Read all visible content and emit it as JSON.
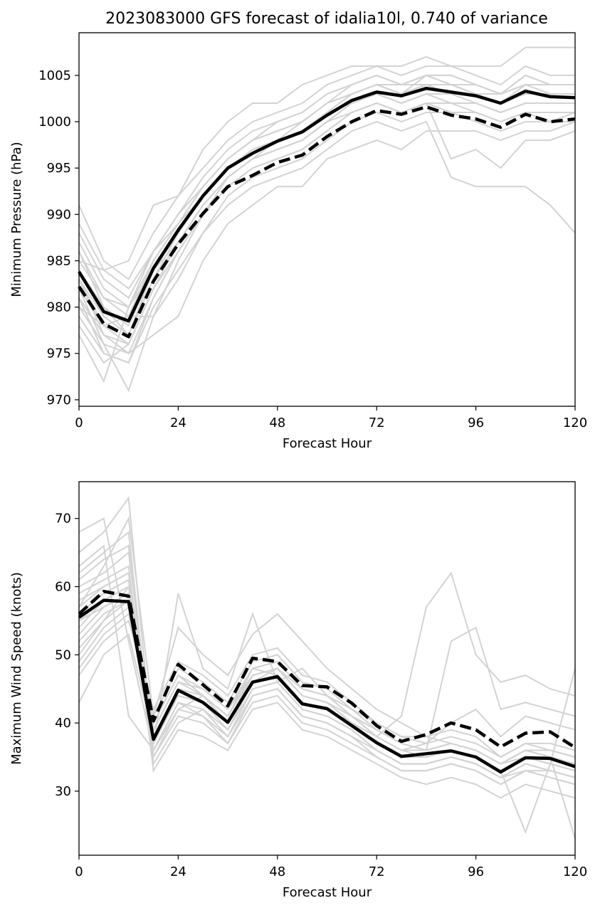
{
  "chart_data": [
    {
      "type": "line",
      "title": "2023083000 GFS forecast of idalia10l, 0.740 of variance",
      "xlabel": "Forecast Hour",
      "ylabel": "Minimum Pressure (hPa)",
      "xlim": [
        0,
        120
      ],
      "ylim": [
        969.3,
        1009.6
      ],
      "xticks": [
        0,
        24,
        48,
        72,
        96,
        120
      ],
      "yticks": [
        970,
        975,
        980,
        985,
        990,
        995,
        1000,
        1005
      ],
      "grid": false,
      "x": [
        0,
        6,
        12,
        18,
        24,
        30,
        36,
        42,
        48,
        54,
        60,
        66,
        72,
        78,
        84,
        90,
        96,
        102,
        108,
        114,
        120
      ],
      "series": [
        {
          "style": "solid",
          "color": "#000000",
          "values": [
            983.8,
            979.5,
            978.5,
            984.2,
            988.3,
            992.0,
            995.0,
            996.6,
            997.9,
            998.9,
            1000.7,
            1002.3,
            1003.2,
            1002.8,
            1003.6,
            1003.2,
            1002.8,
            1002.0,
            1003.3,
            1002.7,
            1002.6
          ]
        },
        {
          "style": "dashed",
          "color": "#000000",
          "values": [
            982.2,
            978.2,
            976.8,
            982.8,
            986.8,
            990.1,
            993.0,
            994.2,
            995.6,
            996.4,
            998.4,
            1000.0,
            1001.2,
            1000.8,
            1001.6,
            1000.7,
            1000.3,
            999.4,
            1000.8,
            1000.0,
            1000.3
          ]
        }
      ],
      "ensemble_members": [
        [
          984,
          980,
          978,
          984,
          988,
          992,
          995,
          997,
          998,
          999,
          1001,
          1002,
          1003,
          1003,
          1004,
          1003,
          1003,
          1002,
          1003,
          1003,
          1003
        ],
        [
          983,
          979,
          977,
          983,
          987,
          991,
          994,
          996,
          997,
          998,
          1000,
          1002,
          1003,
          1002,
          1003,
          1003,
          1002,
          1001,
          1002,
          1002,
          1002
        ],
        [
          986,
          981,
          979,
          985,
          989,
          993,
          996,
          998,
          999,
          1000,
          1002,
          1003,
          1004,
          1003,
          1004,
          1004,
          1003,
          1002,
          1004,
          1003,
          1003
        ],
        [
          981,
          977,
          976,
          982,
          986,
          990,
          993,
          995,
          996,
          997,
          999,
          1001,
          1002,
          1001,
          1002,
          1002,
          1001,
          1000,
          1001,
          1001,
          1001
        ],
        [
          988,
          983,
          981,
          986,
          990,
          994,
          997,
          999,
          1000,
          1001,
          1003,
          1004,
          1005,
          1004,
          1005,
          1005,
          1004,
          1003,
          1005,
          1004,
          1004
        ],
        [
          979,
          975,
          974,
          980,
          984,
          988,
          992,
          994,
          995,
          996,
          998,
          1000,
          1001,
          1000,
          1001,
          1001,
          1000,
          999,
          1000,
          1000,
          1000
        ],
        [
          991,
          985,
          983,
          988,
          992,
          995,
          998,
          1000,
          1001,
          1002,
          1004,
          1005,
          1006,
          1005,
          1006,
          1006,
          1005,
          1004,
          1006,
          1005,
          1005
        ],
        [
          977,
          972,
          980,
          984,
          987,
          991,
          994,
          996,
          997,
          998,
          1000,
          1002,
          1003,
          1002,
          1003,
          1002,
          1002,
          1001,
          1002,
          1002,
          1002
        ],
        [
          982,
          976,
          971,
          979,
          985,
          990,
          994,
          996,
          998,
          999,
          1001,
          1003,
          1004,
          1003,
          1004,
          1003,
          1003,
          1002,
          1003,
          1003,
          1003
        ],
        [
          985,
          984,
          985,
          991,
          992,
          997,
          1000,
          1002,
          1002,
          1004,
          1005,
          1006,
          1006,
          1006,
          1007,
          1006,
          1006,
          1006,
          1008,
          1008,
          1008
        ],
        [
          980,
          978,
          979,
          979,
          983,
          988,
          991,
          993,
          994,
          995,
          997,
          999,
          1000,
          999,
          1000,
          994,
          993,
          993,
          993,
          991,
          988
        ],
        [
          983,
          977,
          975,
          981,
          986,
          990,
          993,
          995,
          996,
          997,
          999,
          1001,
          1002,
          1001,
          1002,
          996,
          997,
          995,
          998,
          998,
          999
        ],
        [
          987,
          982,
          980,
          986,
          990,
          993,
          996,
          998,
          999,
          1000,
          1002,
          1003,
          1004,
          1003,
          1005,
          1004,
          1004,
          1003,
          1004,
          1004,
          1004
        ],
        [
          980,
          976,
          975,
          977,
          979,
          985,
          989,
          991,
          993,
          993,
          996,
          997,
          998,
          997,
          999,
          999,
          999,
          998,
          999,
          999,
          1000
        ],
        [
          978,
          974,
          976,
          982,
          986,
          990,
          993,
          995,
          996,
          997,
          999,
          1001,
          1002,
          1001,
          1002,
          1001,
          1001,
          1000,
          1001,
          1000,
          1001
        ],
        [
          986,
          980,
          977,
          983,
          988,
          992,
          995,
          997,
          998,
          1000,
          1002,
          1003,
          1004,
          1004,
          1004,
          1004,
          1003,
          1003,
          1004,
          1004,
          1004
        ],
        [
          982,
          978,
          979,
          985,
          989,
          993,
          996,
          998,
          999,
          1000,
          1002,
          1004,
          1005,
          1004,
          1005,
          1005,
          1004,
          1003,
          1005,
          1004,
          1004
        ],
        [
          989,
          984,
          982,
          986,
          989,
          992,
          995,
          997,
          998,
          999,
          1001,
          1002,
          1003,
          1003,
          1004,
          1003,
          1003,
          1002,
          1003,
          1003,
          1003
        ],
        [
          981,
          975,
          974,
          981,
          986,
          990,
          994,
          996,
          997,
          998,
          1000,
          1002,
          1003,
          1002,
          1003,
          1002,
          1002,
          1001,
          1002,
          1002,
          1002
        ],
        [
          984,
          979,
          977,
          984,
          988,
          992,
          995,
          997,
          998,
          999,
          1001,
          1003,
          1004,
          1003,
          1004,
          1004,
          1003,
          1002,
          1003,
          1003,
          1003
        ],
        [
          985,
          981,
          980,
          985,
          989,
          993,
          996,
          998,
          1000,
          1001,
          1003,
          1004,
          1005,
          1004,
          1005,
          1004,
          1004,
          1003,
          1004,
          1004,
          1004
        ],
        [
          983,
          978,
          976,
          982,
          987,
          991,
          994,
          996,
          997,
          998,
          1000,
          1001,
          1002,
          1001,
          1002,
          1001,
          1001,
          1000,
          1001,
          1001,
          1001
        ]
      ]
    },
    {
      "type": "line",
      "title": "",
      "xlabel": "Forecast Hour",
      "ylabel": "Maximum Wind Speed (knots)",
      "xlim": [
        0,
        120
      ],
      "ylim": [
        20.6,
        75.4
      ],
      "xticks": [
        0,
        24,
        48,
        72,
        96,
        120
      ],
      "yticks": [
        30,
        40,
        50,
        60,
        70
      ],
      "grid": false,
      "x": [
        0,
        6,
        12,
        18,
        24,
        30,
        36,
        42,
        48,
        54,
        60,
        66,
        72,
        78,
        84,
        90,
        96,
        102,
        108,
        114,
        120
      ],
      "series": [
        {
          "style": "solid",
          "color": "#000000",
          "values": [
            55.5,
            58.0,
            57.8,
            37.6,
            44.8,
            43.0,
            40.1,
            46.0,
            46.8,
            42.8,
            42.1,
            39.6,
            37.1,
            35.1,
            35.5,
            35.9,
            35.0,
            32.8,
            34.9,
            34.8,
            33.6
          ]
        },
        {
          "style": "dashed",
          "color": "#000000",
          "values": [
            56.0,
            59.3,
            58.6,
            40.3,
            48.6,
            45.6,
            42.5,
            49.5,
            49.0,
            45.5,
            45.3,
            42.9,
            39.6,
            37.3,
            38.3,
            40.0,
            39.0,
            36.5,
            38.5,
            38.7,
            36.4
          ]
        }
      ],
      "ensemble_members": [
        [
          55,
          58,
          58,
          38,
          45,
          43,
          40,
          46,
          47,
          43,
          42,
          40,
          37,
          35,
          35,
          36,
          35,
          33,
          35,
          35,
          34
        ],
        [
          60,
          62,
          65,
          36,
          43,
          41,
          38,
          44,
          45,
          41,
          40,
          38,
          36,
          34,
          34,
          35,
          34,
          32,
          34,
          33,
          32
        ],
        [
          50,
          55,
          60,
          40,
          47,
          45,
          42,
          48,
          49,
          45,
          44,
          41,
          39,
          37,
          36,
          37,
          36,
          34,
          36,
          36,
          35
        ],
        [
          65,
          68,
          73,
          35,
          41,
          40,
          37,
          43,
          44,
          40,
          39,
          37,
          35,
          33,
          33,
          34,
          33,
          31,
          33,
          32,
          31
        ],
        [
          47,
          52,
          55,
          42,
          49,
          47,
          44,
          50,
          51,
          47,
          46,
          43,
          40,
          38,
          38,
          39,
          38,
          35,
          37,
          37,
          36
        ],
        [
          58,
          60,
          62,
          37,
          59,
          48,
          45,
          56,
          46,
          48,
          44,
          41,
          38,
          36,
          37,
          40,
          42,
          38,
          41,
          40,
          39
        ],
        [
          43,
          50,
          53,
          38,
          45,
          44,
          41,
          47,
          48,
          44,
          43,
          40,
          38,
          36,
          36,
          37,
          36,
          34,
          36,
          35,
          34
        ],
        [
          62,
          65,
          68,
          34,
          40,
          42,
          38,
          45,
          46,
          42,
          41,
          39,
          36,
          34,
          34,
          35,
          34,
          32,
          33,
          33,
          32
        ],
        [
          53,
          57,
          59,
          39,
          46,
          45,
          42,
          48,
          47,
          43,
          42,
          40,
          37,
          35,
          35,
          36,
          35,
          33,
          35,
          34,
          33
        ],
        [
          57,
          63,
          70,
          41,
          54,
          50,
          47,
          53,
          56,
          52,
          48,
          45,
          42,
          40,
          38,
          37,
          36,
          34,
          35,
          35,
          34
        ],
        [
          68,
          70,
          52,
          36,
          42,
          44,
          40,
          47,
          48,
          44,
          43,
          41,
          38,
          41,
          57,
          62,
          50,
          46,
          47,
          45,
          44
        ],
        [
          49,
          54,
          57,
          40,
          47,
          44,
          41,
          48,
          49,
          45,
          44,
          41,
          39,
          37,
          36,
          52,
          54,
          42,
          43,
          42,
          41
        ],
        [
          56,
          59,
          61,
          37,
          44,
          43,
          39,
          46,
          47,
          43,
          42,
          40,
          37,
          35,
          35,
          36,
          35,
          33,
          35,
          34,
          33
        ],
        [
          61,
          64,
          66,
          35,
          42,
          41,
          37,
          44,
          45,
          41,
          40,
          38,
          35,
          33,
          33,
          34,
          33,
          31,
          33,
          32,
          31
        ],
        [
          52,
          56,
          58,
          39,
          46,
          45,
          42,
          47,
          48,
          45,
          44,
          42,
          39,
          37,
          36,
          37,
          36,
          34,
          36,
          35,
          34
        ],
        [
          59,
          61,
          63,
          33,
          39,
          38,
          36,
          42,
          43,
          39,
          38,
          36,
          34,
          32,
          31,
          32,
          31,
          29,
          31,
          30,
          29
        ],
        [
          54,
          58,
          60,
          38,
          45,
          44,
          40,
          46,
          48,
          44,
          43,
          40,
          38,
          36,
          35,
          36,
          35,
          33,
          35,
          34,
          33
        ],
        [
          48,
          53,
          56,
          41,
          48,
          46,
          43,
          49,
          50,
          46,
          45,
          42,
          40,
          38,
          37,
          38,
          37,
          35,
          37,
          36,
          35
        ],
        [
          63,
          66,
          41,
          36,
          43,
          42,
          39,
          45,
          46,
          42,
          41,
          39,
          36,
          34,
          34,
          35,
          34,
          32,
          34,
          33,
          32
        ],
        [
          57,
          60,
          62,
          37,
          44,
          43,
          40,
          46,
          47,
          43,
          42,
          40,
          37,
          35,
          35,
          36,
          35,
          33,
          35,
          34,
          48
        ],
        [
          51,
          55,
          58,
          39,
          46,
          44,
          41,
          47,
          48,
          44,
          43,
          41,
          38,
          36,
          36,
          37,
          36,
          34,
          36,
          35,
          23
        ],
        [
          55,
          57,
          59,
          38,
          45,
          43,
          40,
          46,
          47,
          43,
          42,
          40,
          37,
          35,
          35,
          36,
          35,
          33,
          24,
          34,
          33
        ]
      ]
    }
  ]
}
